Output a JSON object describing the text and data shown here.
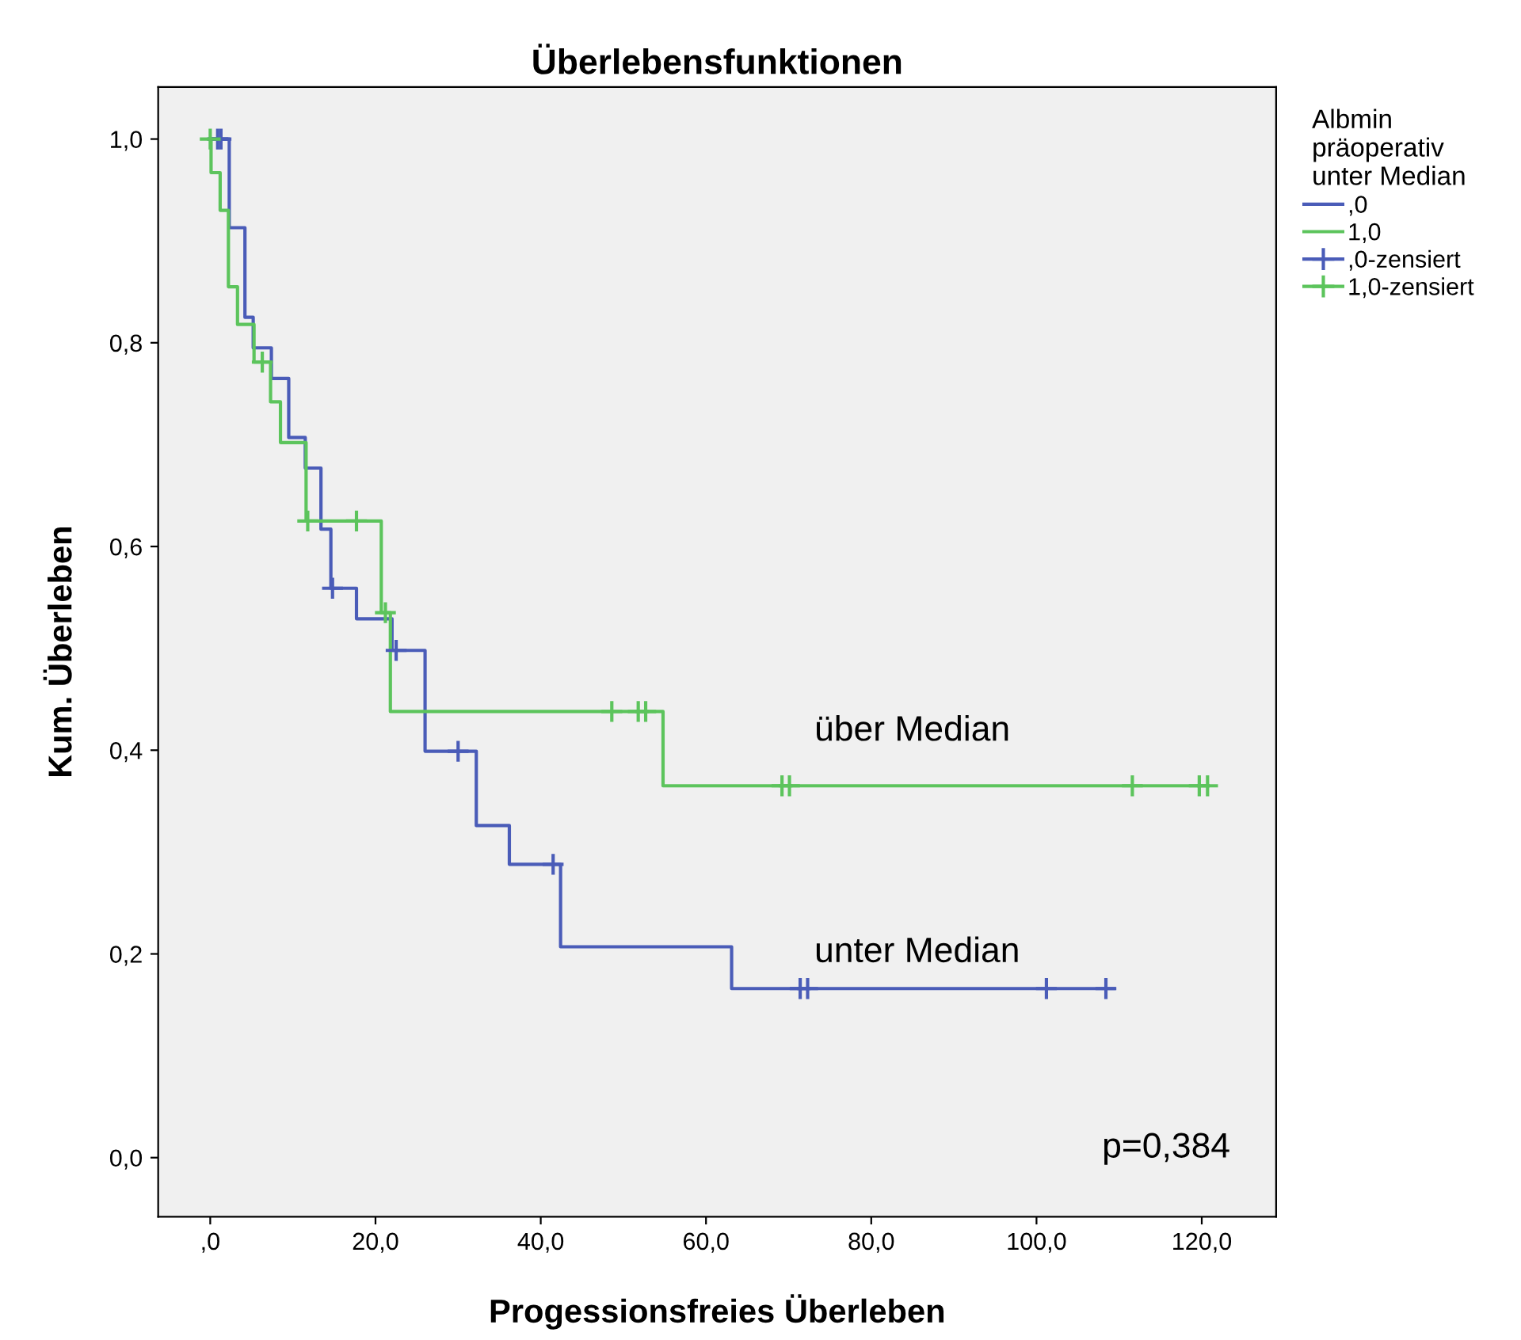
{
  "chart_data": {
    "type": "step",
    "title": "Überlebensfunktionen",
    "xlabel": "Progessionsfreies Überleben",
    "ylabel": "Kum. Überleben",
    "legend_title": "Albmin\npräoperativ\nunter Median",
    "legend": "top right",
    "grid": false,
    "xlim": [
      -6.3,
      129
    ],
    "ylim": [
      -0.058,
      1.051
    ],
    "xticks": [
      {
        "value": 0,
        "label": ",0"
      },
      {
        "value": 20,
        "label": "20,0"
      },
      {
        "value": 40,
        "label": "40,0"
      },
      {
        "value": 60,
        "label": "60,0"
      },
      {
        "value": 80,
        "label": "80,0"
      },
      {
        "value": 100,
        "label": "100,0"
      },
      {
        "value": 120,
        "label": "120,0"
      }
    ],
    "yticks": [
      {
        "value": 0,
        "label": "0,0"
      },
      {
        "value": 0.2,
        "label": "0,2"
      },
      {
        "value": 0.4,
        "label": "0,4"
      },
      {
        "value": 0.6,
        "label": "0,6"
      },
      {
        "value": 0.8,
        "label": "0,8"
      },
      {
        "value": 1,
        "label": "1,0"
      }
    ],
    "series": [
      {
        "name": ",0",
        "color": "#4a5cb8",
        "x": [
          0,
          2.3,
          4.2,
          5.2,
          7.4,
          9.5,
          11.5,
          13.4,
          14.6,
          17.7,
          22,
          26,
          32.2,
          36.2,
          42.4,
          63.1,
          109.4
        ],
        "values": [
          1,
          0.913,
          0.825,
          0.795,
          0.765,
          0.707,
          0.677,
          0.617,
          0.559,
          0.529,
          0.498,
          0.399,
          0.326,
          0.288,
          0.207,
          0.166,
          0.166
        ]
      },
      {
        "name": "1,0",
        "color": "#5cc45c",
        "x": [
          0,
          0.1,
          1.2,
          2.2,
          3.3,
          5.3,
          7.3,
          8.5,
          11.6,
          20.7,
          21.8,
          54.8,
          120.7
        ],
        "values": [
          1,
          0.967,
          0.93,
          0.855,
          0.818,
          0.781,
          0.742,
          0.702,
          0.625,
          0.535,
          0.438,
          0.365,
          0.365
        ]
      },
      {
        "name": ",0-zensiert",
        "type": "scatter",
        "marker": "cross",
        "color": "#4a5cb8",
        "x": [
          0.9,
          1.3,
          14.8,
          22.5,
          30,
          41.5,
          71.4,
          72.3,
          101.2,
          108.4
        ],
        "values": [
          1,
          1,
          0.559,
          0.498,
          0.399,
          0.288,
          0.166,
          0.166,
          0.166,
          0.166
        ]
      },
      {
        "name": "1,0-zensiert",
        "type": "scatter",
        "marker": "cross",
        "color": "#5cc45c",
        "x": [
          0,
          6.3,
          11.8,
          17.7,
          21.2,
          48.6,
          51.8,
          52.7,
          69.2,
          70.1,
          111.6,
          119.7,
          120.7
        ],
        "values": [
          1,
          0.781,
          0.625,
          0.625,
          0.535,
          0.438,
          0.438,
          0.438,
          0.365,
          0.365,
          0.365,
          0.365,
          0.365
        ]
      }
    ],
    "annotations": [
      "über Median",
      "unter Median",
      "p=0,384"
    ]
  }
}
